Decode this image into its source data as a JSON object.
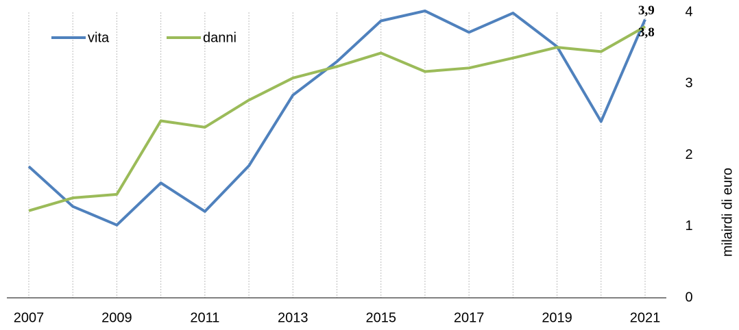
{
  "chart_data": {
    "type": "line",
    "categories": [
      "2007",
      null,
      "2009",
      null,
      "2011",
      null,
      "2013",
      null,
      "2015",
      null,
      "2017",
      null,
      "2019",
      null,
      "2021"
    ],
    "series": [
      {
        "name": "vita",
        "color": "#4f81bd",
        "values": [
          1.84,
          1.28,
          1.02,
          1.61,
          1.21,
          1.85,
          2.84,
          3.31,
          3.88,
          4.02,
          3.72,
          3.99,
          3.52,
          2.47,
          3.9
        ],
        "value_labels": [
          null,
          null,
          null,
          null,
          null,
          null,
          null,
          null,
          null,
          null,
          null,
          null,
          null,
          null,
          "3,9"
        ]
      },
      {
        "name": "danni",
        "color": "#9bbb59",
        "values": [
          1.22,
          1.4,
          1.45,
          2.48,
          2.39,
          2.77,
          3.08,
          3.24,
          3.43,
          3.17,
          3.22,
          3.36,
          3.51,
          3.45,
          3.8
        ],
        "value_labels": [
          null,
          null,
          null,
          null,
          null,
          null,
          null,
          null,
          null,
          null,
          null,
          null,
          null,
          null,
          "3,8"
        ]
      }
    ],
    "y_label": "milairdi di euro",
    "ylim": [
      0,
      4
    ],
    "yticks": [
      0,
      1,
      2,
      3,
      4
    ],
    "grid": true,
    "legend": "top-left"
  }
}
